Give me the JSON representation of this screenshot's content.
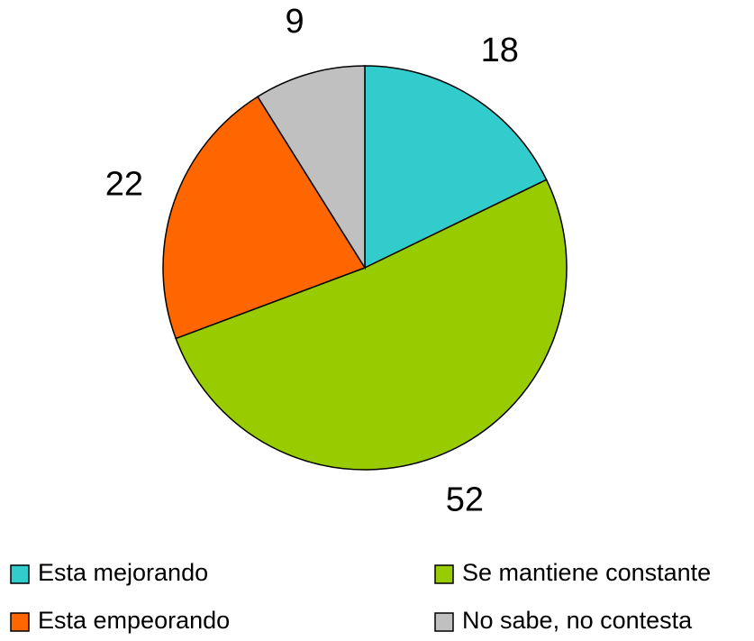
{
  "chart_data": {
    "type": "pie",
    "categories": [
      "Esta mejorando",
      "Se mantiene constante",
      "Esta empeorando",
      "No sabe, no contesta"
    ],
    "values": [
      18,
      52,
      22,
      9
    ],
    "colors": [
      "#33cccc",
      "#99cc00",
      "#ff6600",
      "#c0c0c0"
    ],
    "legend": "bottom"
  }
}
